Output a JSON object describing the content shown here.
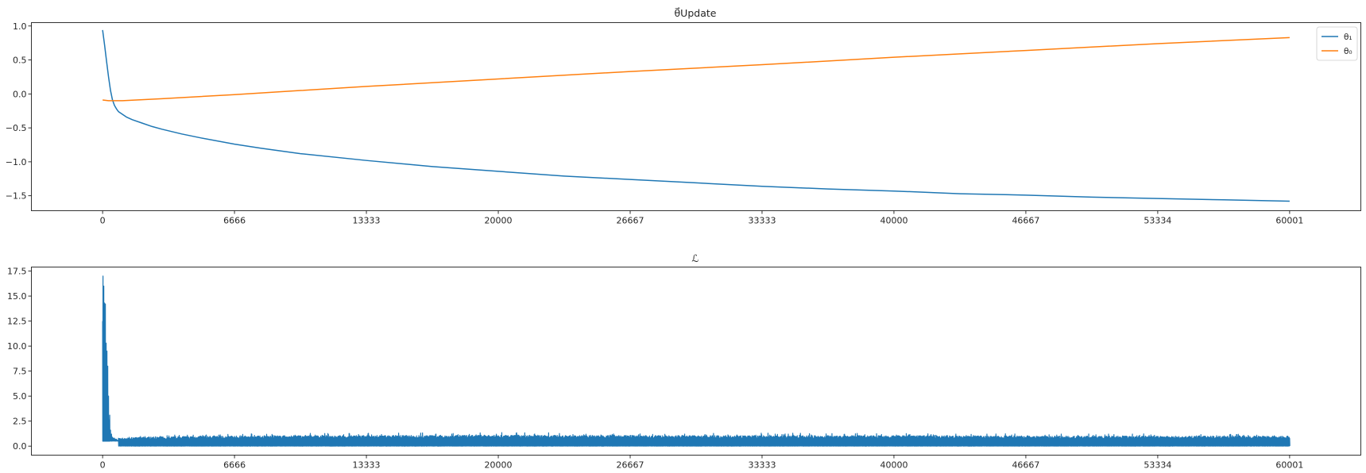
{
  "chart_data": [
    {
      "type": "line",
      "title": "θ⃗Update",
      "xlabel": "",
      "ylabel": "",
      "xlim": [
        -3600,
        63600
      ],
      "ylim": [
        -1.72,
        1.05
      ],
      "xticks": [
        0,
        6666,
        13333,
        20000,
        26667,
        33333,
        40000,
        46667,
        53334,
        60001
      ],
      "xtick_labels": [
        "0",
        "6666",
        "13333",
        "20000",
        "26667",
        "33333",
        "40000",
        "46667",
        "53334",
        "60001"
      ],
      "yticks": [
        1.0,
        0.5,
        0.0,
        -0.5,
        -1.0,
        -1.5
      ],
      "ytick_labels": [
        "1.0",
        "0.5",
        "0.0",
        "−0.5",
        "−1.0",
        "−1.5"
      ],
      "grid": false,
      "legend": "top-right",
      "series": [
        {
          "name": "θ₁",
          "color": "#1f77b4",
          "x": [
            0,
            100,
            200,
            300,
            400,
            500,
            600,
            700,
            800,
            1000,
            1200,
            1500,
            2000,
            2500,
            3000,
            4000,
            5000,
            6666,
            8000,
            10000,
            13333,
            16666,
            20000,
            23333,
            26667,
            30000,
            33333,
            36666,
            40000,
            43333,
            46667,
            50000,
            53334,
            56667,
            60001
          ],
          "y": [
            0.94,
            0.72,
            0.48,
            0.25,
            0.05,
            -0.09,
            -0.17,
            -0.22,
            -0.26,
            -0.3,
            -0.34,
            -0.38,
            -0.43,
            -0.48,
            -0.52,
            -0.59,
            -0.65,
            -0.74,
            -0.8,
            -0.88,
            -0.98,
            -1.07,
            -1.14,
            -1.21,
            -1.26,
            -1.31,
            -1.36,
            -1.4,
            -1.43,
            -1.47,
            -1.49,
            -1.52,
            -1.54,
            -1.56,
            -1.58
          ]
        },
        {
          "name": "θ₀",
          "color": "#ff7f0e",
          "x": [
            0,
            300,
            600,
            1000,
            3000,
            6666,
            10000,
            13333,
            20000,
            26667,
            33333,
            40000,
            46667,
            53334,
            60001
          ],
          "y": [
            -0.09,
            -0.1,
            -0.1,
            -0.1,
            -0.07,
            -0.01,
            0.05,
            0.11,
            0.22,
            0.33,
            0.43,
            0.54,
            0.64,
            0.74,
            0.83
          ]
        }
      ]
    },
    {
      "type": "line",
      "title": "ℒ",
      "xlabel": "",
      "ylabel": "",
      "xlim": [
        -3600,
        63600
      ],
      "ylim": [
        -0.9,
        17.9
      ],
      "xticks": [
        0,
        6666,
        13333,
        20000,
        26667,
        33333,
        40000,
        46667,
        53334,
        60001
      ],
      "xtick_labels": [
        "0",
        "6666",
        "13333",
        "20000",
        "26667",
        "33333",
        "40000",
        "46667",
        "53334",
        "60001"
      ],
      "yticks": [
        0.0,
        2.5,
        5.0,
        7.5,
        10.0,
        12.5,
        15.0,
        17.5
      ],
      "ytick_labels": [
        "0.0",
        "2.5",
        "5.0",
        "7.5",
        "10.0",
        "12.5",
        "15.0",
        "17.5"
      ],
      "grid": false,
      "series": [
        {
          "color": "#1f77b4",
          "peak_x": [
            0,
            20,
            40,
            60,
            80,
            100,
            120,
            140,
            160,
            180,
            200,
            220,
            240,
            260,
            280,
            300,
            330,
            360,
            400,
            450,
            500,
            550,
            600,
            650,
            700,
            750,
            800
          ],
          "peak_y": [
            12.5,
            17.0,
            9.5,
            16.0,
            11.0,
            14.3,
            6.5,
            14.2,
            8.0,
            10.3,
            4.5,
            9.5,
            5.0,
            8.0,
            3.5,
            5.0,
            2.6,
            3.1,
            1.6,
            1.2,
            0.9,
            0.8,
            0.8,
            0.7,
            0.7,
            0.6,
            0.6
          ],
          "noise_band": {
            "x": [
              800,
              2000,
              5000,
              10000,
              20000,
              30000,
              40000,
              50000,
              60001
            ],
            "max": [
              0.9,
              1.0,
              1.2,
              1.3,
              1.35,
              1.3,
              1.3,
              1.25,
              1.2
            ],
            "typical_max": [
              0.8,
              0.9,
              1.0,
              1.05,
              1.1,
              1.05,
              1.05,
              1.0,
              1.0
            ],
            "min": [
              0.0,
              0.0,
              0.0,
              0.0,
              0.0,
              0.0,
              0.0,
              0.0,
              0.0
            ]
          }
        }
      ]
    }
  ]
}
